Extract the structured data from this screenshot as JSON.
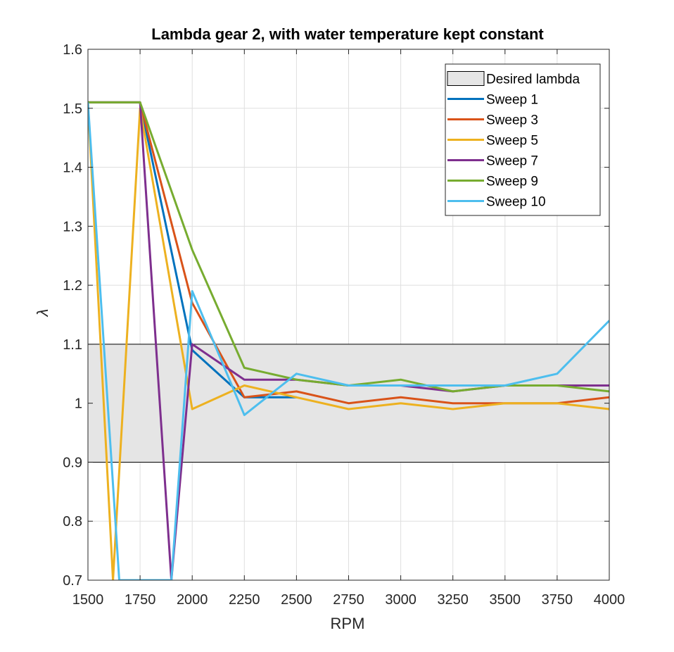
{
  "chart_data": {
    "type": "line",
    "title": "Lambda gear 2, with water temperature kept constant",
    "xlabel": "RPM",
    "ylabel": "λ",
    "xlim": [
      1500,
      4000
    ],
    "ylim": [
      0.7,
      1.6
    ],
    "x_ticks": [
      1500,
      1750,
      2000,
      2250,
      2500,
      2750,
      3000,
      3250,
      3500,
      3750,
      4000
    ],
    "y_ticks": [
      0.7,
      0.8,
      0.9,
      1,
      1.1,
      1.2,
      1.3,
      1.4,
      1.5,
      1.6
    ],
    "grid": true,
    "legend_position": "top-right",
    "band": {
      "name": "Desired lambda",
      "y_min": 0.9,
      "y_max": 1.1,
      "fill": "#e5e5e5",
      "stroke": "#000000"
    },
    "series": [
      {
        "name": "Sweep 1",
        "color": "#0072BD",
        "x": [
          1500,
          1750,
          2000,
          2250,
          2500
        ],
        "y": [
          1.51,
          1.51,
          1.09,
          1.01,
          1.01
        ]
      },
      {
        "name": "Sweep 3",
        "color": "#D95319",
        "x": [
          1500,
          1750,
          2000,
          2250,
          2500,
          2750,
          3000,
          3250,
          3500,
          3750,
          4000
        ],
        "y": [
          1.51,
          1.51,
          1.17,
          1.01,
          1.02,
          1.0,
          1.01,
          1.0,
          1.0,
          1.0,
          1.01
        ]
      },
      {
        "name": "Sweep 5",
        "color": "#EDB120",
        "x": [
          1500,
          1620,
          1750,
          2000,
          2250,
          2500,
          2750,
          3000,
          3250,
          3500,
          3750,
          4000
        ],
        "y": [
          1.51,
          0.7,
          1.5,
          0.99,
          1.03,
          1.01,
          0.99,
          1.0,
          0.99,
          1.0,
          1.0,
          0.99
        ]
      },
      {
        "name": "Sweep 7",
        "color": "#7E2F8E",
        "x": [
          1500,
          1750,
          1900,
          2000,
          2250,
          2500,
          2750,
          3000,
          3250,
          3500,
          3750,
          4000
        ],
        "y": [
          1.51,
          1.51,
          0.7,
          1.1,
          1.04,
          1.04,
          1.03,
          1.03,
          1.02,
          1.03,
          1.03,
          1.03
        ]
      },
      {
        "name": "Sweep 9",
        "color": "#77AC30",
        "x": [
          1500,
          1750,
          2000,
          2250,
          2500,
          2750,
          3000,
          3250,
          3500,
          3750,
          4000
        ],
        "y": [
          1.51,
          1.51,
          1.26,
          1.06,
          1.04,
          1.03,
          1.04,
          1.02,
          1.03,
          1.03,
          1.02
        ]
      },
      {
        "name": "Sweep 10",
        "color": "#4DBEEE",
        "x": [
          1500,
          1650,
          1900,
          2000,
          2250,
          2500,
          2750,
          3000,
          3250,
          3500,
          3750,
          4000
        ],
        "y": [
          1.51,
          0.7,
          0.7,
          1.19,
          0.98,
          1.05,
          1.03,
          1.03,
          1.03,
          1.03,
          1.05,
          1.14
        ]
      }
    ]
  }
}
